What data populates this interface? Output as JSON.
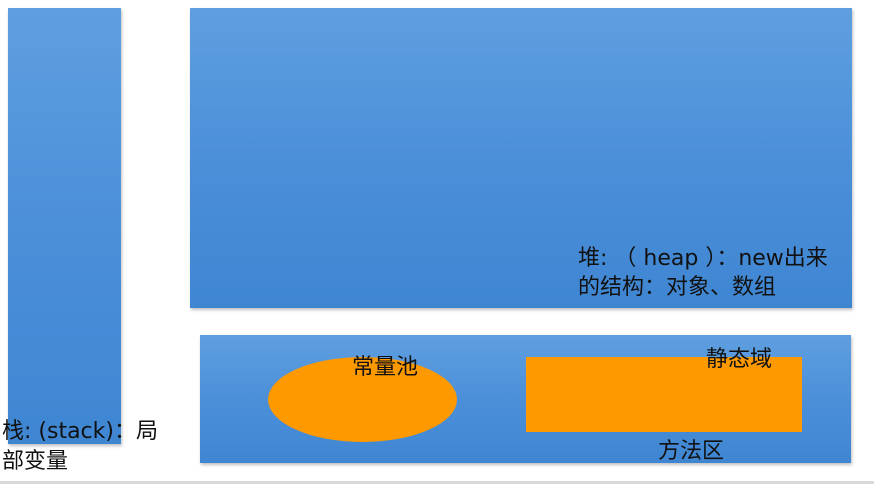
{
  "stack": {
    "label_line1": "栈: (stack)：局",
    "label_line2": "部变量",
    "color": "#4a8ed8"
  },
  "heap": {
    "label_line1": "堆: （ heap ）：new出来",
    "label_line2": "的结构：对象、数组",
    "color": "#4a8ed8"
  },
  "method_area": {
    "label": "方法区",
    "color": "#4a8ed8",
    "constant_pool": {
      "label": "常量池",
      "color": "#ff9900"
    },
    "static_area": {
      "label": "静态域",
      "color": "#ff9900"
    }
  }
}
